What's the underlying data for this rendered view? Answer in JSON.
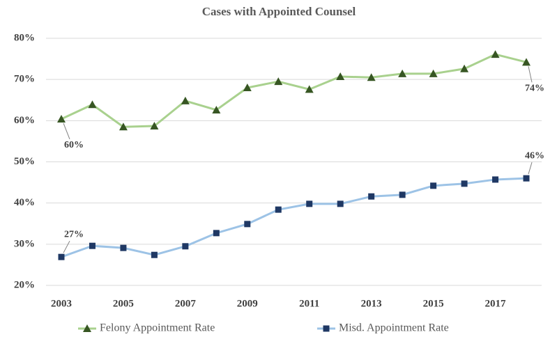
{
  "chart_data": {
    "type": "line",
    "title": "Cases with Appointed Counsel",
    "categories": [
      "2003",
      null,
      "2005",
      null,
      "2007",
      null,
      "2009",
      null,
      "2011",
      null,
      "2013",
      null,
      "2015",
      null,
      "2017",
      null
    ],
    "series": [
      {
        "name": "Felony Appointment Rate",
        "color": "#a9d18e",
        "marker_color": "#375623",
        "marker": "triangle",
        "values": [
          60.4,
          63.9,
          58.5,
          58.7,
          64.8,
          62.6,
          68.0,
          69.5,
          67.6,
          70.7,
          70.5,
          71.4,
          71.4,
          72.6,
          76.1,
          74.2
        ],
        "value_labels": [
          "60%",
          null,
          null,
          null,
          null,
          null,
          null,
          null,
          null,
          null,
          null,
          null,
          null,
          null,
          null,
          "74%"
        ]
      },
      {
        "name": "Misd. Appointment Rate",
        "color": "#9dc3e6",
        "marker_color": "#1f3864",
        "marker": "square",
        "values": [
          26.9,
          29.6,
          29.1,
          27.4,
          29.5,
          32.7,
          34.9,
          38.4,
          39.8,
          39.8,
          41.6,
          42.0,
          44.2,
          44.7,
          45.7,
          46.0
        ],
        "value_labels": [
          "27%",
          null,
          null,
          null,
          null,
          null,
          null,
          null,
          null,
          null,
          null,
          null,
          null,
          null,
          null,
          "46%"
        ]
      }
    ],
    "ylim": [
      20,
      80
    ],
    "yticks": [
      {
        "value": 20,
        "label": "20%"
      },
      {
        "value": 30,
        "label": "30%"
      },
      {
        "value": 40,
        "label": "40%"
      },
      {
        "value": 50,
        "label": "50%"
      },
      {
        "value": 60,
        "label": "60%"
      },
      {
        "value": 70,
        "label": "70%"
      },
      {
        "value": 80,
        "label": "80%"
      }
    ],
    "grid": true,
    "legend": "bottom"
  }
}
